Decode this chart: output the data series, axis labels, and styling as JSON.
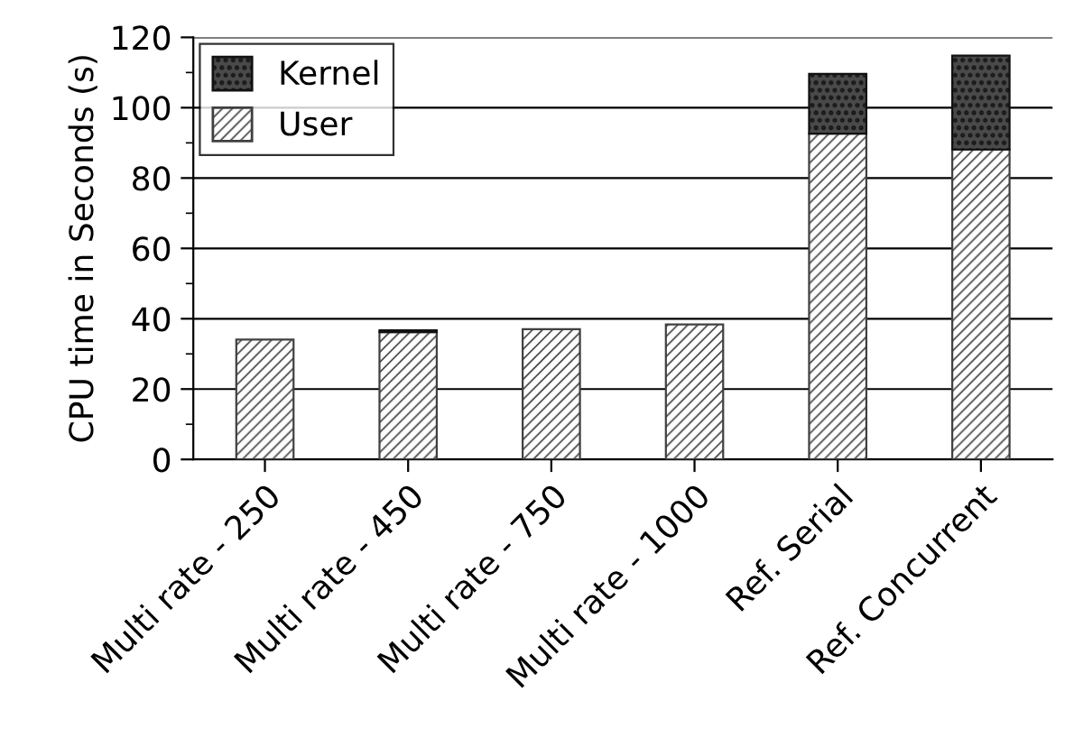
{
  "chart_data": {
    "type": "bar",
    "stacked": true,
    "ylabel": "CPU time in Seconds (s)",
    "categories": [
      "Multi rate - 250",
      "Multi rate - 450",
      "Multi rate - 750",
      "Multi rate - 1000",
      "Ref. Serial",
      "Ref. Concurrent"
    ],
    "series": [
      {
        "name": "User",
        "color": "#404040",
        "values": [
          34.1,
          36.2,
          37.0,
          38.4,
          92.6,
          88.1
        ]
      },
      {
        "name": "Kernel",
        "color": "#111111",
        "values": [
          null,
          0.5,
          null,
          null,
          17.0,
          26.7
        ]
      }
    ],
    "ylim": [
      0,
      120
    ],
    "yticks": [
      0,
      {
        "value": 10,
        "label": null
      },
      20,
      {
        "value": 30,
        "label": null
      },
      40,
      {
        "value": 50,
        "label": null
      },
      60,
      {
        "value": 70,
        "label": null
      },
      80,
      {
        "value": 90,
        "label": null
      },
      100,
      {
        "value": 110,
        "label": null
      },
      120
    ],
    "grid": "y",
    "legend": "top left"
  }
}
